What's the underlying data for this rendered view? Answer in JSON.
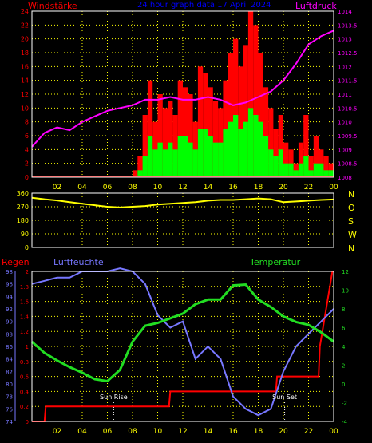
{
  "header": {
    "left_label": "Windstärke",
    "title": "24 hour graph data  17 April 2024",
    "right_label": "Luftdruck"
  },
  "bottom_header": {
    "left_label": "Regen",
    "mid_label": "Luftfeuchte",
    "right_label": "Temperatur"
  },
  "colors": {
    "background": "#000000",
    "grid": "#ffff00",
    "wind_gust": "#ff0000",
    "wind_avg": "#00ff00",
    "pressure": "#ff00ff",
    "direction": "#ffff00",
    "rain": "#ff0000",
    "humidity": "#7777ff",
    "temperature": "#22dd22",
    "title": "#0000ff"
  },
  "chart_data": [
    {
      "type": "bar",
      "name": "wind",
      "x_ticks": [
        "02",
        "04",
        "06",
        "08",
        "10",
        "12",
        "14",
        "16",
        "18",
        "20",
        "22",
        "00"
      ],
      "left_axis": {
        "label": "Windstärke",
        "ticks": [
          0,
          2,
          4,
          6,
          8,
          10,
          12,
          14,
          16,
          18,
          20,
          22,
          24
        ],
        "ylim": [
          0,
          24
        ]
      },
      "right_axis": {
        "label": "Luftdruck",
        "ticks": [
          1008,
          1008.5,
          1009,
          1009.5,
          1010,
          1010.5,
          1011,
          1011.5,
          1012,
          1012.5,
          1013,
          1013.5,
          1014
        ],
        "ylim": [
          1008,
          1014
        ]
      },
      "gust_samples": {
        "hours": [
          8.0,
          8.4,
          8.8,
          9.2,
          9.6,
          10.0,
          10.4,
          10.8,
          11.2,
          11.6,
          12.0,
          12.4,
          12.8,
          13.2,
          13.6,
          14.0,
          14.4,
          14.8,
          15.2,
          15.6,
          16.0,
          16.4,
          16.8,
          17.2,
          17.6,
          18.0,
          18.4,
          18.8,
          19.2,
          19.6,
          20.0,
          20.4,
          20.8,
          21.2,
          21.6,
          22.0,
          22.4,
          22.8,
          23.2,
          23.6
        ],
        "values": [
          1,
          3,
          9,
          14,
          8,
          12,
          10,
          11,
          9,
          14,
          13,
          12,
          8,
          16,
          15,
          13,
          11,
          10,
          14,
          18,
          20,
          16,
          19,
          24,
          22,
          18,
          13,
          10,
          7,
          9,
          5,
          4,
          2,
          5,
          9,
          3,
          6,
          4,
          3,
          2
        ]
      },
      "avg_samples": {
        "hours": [
          8.0,
          8.4,
          8.8,
          9.2,
          9.6,
          10.0,
          10.4,
          10.8,
          11.2,
          11.6,
          12.0,
          12.4,
          12.8,
          13.2,
          13.6,
          14.0,
          14.4,
          14.8,
          15.2,
          15.6,
          16.0,
          16.4,
          16.8,
          17.2,
          17.6,
          18.0,
          18.4,
          18.8,
          19.2,
          19.6,
          20.0,
          20.4,
          20.8,
          21.2,
          21.6,
          22.0,
          22.4,
          22.8,
          23.2,
          23.6
        ],
        "values": [
          0,
          1,
          3,
          6,
          4,
          5,
          4,
          5,
          4,
          6,
          6,
          5,
          4,
          7,
          7,
          6,
          5,
          5,
          7,
          8,
          9,
          7,
          8,
          10,
          9,
          8,
          6,
          4,
          3,
          4,
          2,
          2,
          1,
          2,
          3,
          1,
          2,
          2,
          1,
          1
        ]
      },
      "pressure": {
        "hours": [
          0,
          1,
          2,
          3,
          4,
          5,
          6,
          7,
          8,
          9,
          10,
          11,
          12,
          13,
          14,
          15,
          16,
          17,
          18,
          19,
          20,
          21,
          22,
          23,
          24
        ],
        "values": [
          1009.1,
          1009.6,
          1009.8,
          1009.7,
          1010.0,
          1010.2,
          1010.4,
          1010.5,
          1010.6,
          1010.8,
          1010.8,
          1010.9,
          1010.8,
          1010.8,
          1010.9,
          1010.8,
          1010.6,
          1010.7,
          1010.9,
          1011.1,
          1011.5,
          1012.1,
          1012.8,
          1013.1,
          1013.3
        ]
      }
    },
    {
      "type": "line",
      "name": "wind direction",
      "right_axis": {
        "ticks": [
          "N",
          "W",
          "S",
          "O",
          "N"
        ]
      },
      "left_axis": {
        "ticks": [
          0,
          90,
          180,
          270,
          360
        ],
        "ylim": [
          0,
          360
        ]
      },
      "x": [
        0,
        1,
        2,
        3,
        4,
        5,
        6,
        7,
        8,
        9,
        10,
        11,
        12,
        13,
        14,
        15,
        16,
        17,
        18,
        19,
        20,
        21,
        22,
        23,
        24
      ],
      "y": [
        330,
        320,
        312,
        300,
        290,
        280,
        270,
        265,
        270,
        275,
        285,
        290,
        295,
        300,
        310,
        315,
        315,
        320,
        325,
        320,
        300,
        305,
        310,
        315,
        318
      ]
    },
    {
      "type": "line",
      "name": "rain humidity temperature",
      "x_ticks": [
        "02",
        "04",
        "06",
        "08",
        "10",
        "12",
        "14",
        "16",
        "18",
        "20",
        "22",
        "00"
      ],
      "rain_axis": {
        "ticks": [
          0,
          0.2,
          0.4,
          0.6,
          0.8,
          1,
          1.2,
          1.4,
          1.6,
          1.8,
          2
        ],
        "ylim": [
          0,
          2
        ]
      },
      "humidity_axis": {
        "ticks": [
          74,
          76,
          78,
          80,
          82,
          84,
          86,
          88,
          90,
          92,
          94,
          96,
          98
        ],
        "ylim": [
          74,
          98
        ]
      },
      "temperature_axis": {
        "ticks": [
          -4,
          -2,
          0,
          2,
          4,
          6,
          8,
          10,
          12
        ],
        "ylim": [
          -4,
          12
        ]
      },
      "rain": {
        "x": [
          0,
          1,
          1.1,
          10.9,
          11,
          19.4,
          19.5,
          21.7,
          21.8,
          22.8,
          22.9,
          23.9,
          24
        ],
        "y": [
          0,
          0,
          0.2,
          0.2,
          0.4,
          0.4,
          0.6,
          0.6,
          0.6,
          0.6,
          1.0,
          2.0,
          2.0
        ]
      },
      "humidity": {
        "x": [
          0,
          1,
          2,
          3,
          4,
          5,
          6,
          7,
          8,
          9,
          10,
          11,
          12,
          13,
          14,
          15,
          16,
          17,
          18,
          19,
          20,
          21,
          22,
          23,
          24
        ],
        "y": [
          96,
          96.5,
          97,
          97,
          98,
          98,
          98,
          98.5,
          98,
          96,
          91,
          89,
          90,
          84,
          86,
          84,
          78,
          76,
          75,
          76,
          82,
          86,
          88,
          90,
          92
        ]
      },
      "temperature": {
        "x": [
          0,
          1,
          2,
          3,
          4,
          5,
          6,
          7,
          8,
          9,
          10,
          11,
          12,
          13,
          14,
          15,
          16,
          17,
          18,
          19,
          20,
          21,
          22,
          23,
          24
        ],
        "y": [
          4.5,
          3.3,
          2.5,
          1.8,
          1.2,
          0.5,
          0.3,
          1.5,
          4.5,
          6.2,
          6.5,
          7.0,
          7.5,
          8.5,
          9.0,
          9.0,
          10.5,
          10.6,
          9.0,
          8.2,
          7.2,
          6.6,
          6.3,
          5.5,
          4.5
        ]
      },
      "annotations": [
        "Sun Rise",
        "Sun Set"
      ]
    }
  ]
}
